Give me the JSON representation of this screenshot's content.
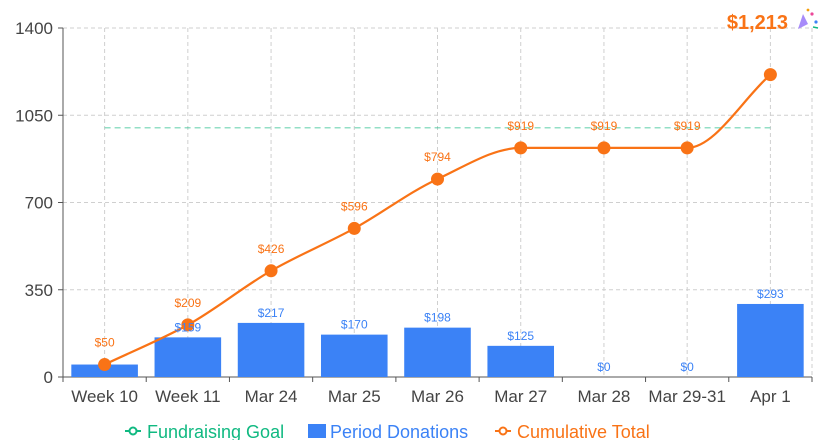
{
  "chart_data": {
    "type": "bar",
    "categories": [
      "Week 10",
      "Week 11",
      "Mar 24",
      "Mar 25",
      "Mar 26",
      "Mar 27",
      "Mar 28",
      "Mar 29-31",
      "Apr 1"
    ],
    "ylim": [
      0,
      1400
    ],
    "yticks": [
      0,
      350,
      700,
      1050,
      1400
    ],
    "grid": true,
    "legend_position": "bottom",
    "series": [
      {
        "name": "Fundraising Goal",
        "type": "line",
        "style": "dashed",
        "color": "#10b981",
        "values": [
          1000,
          1000,
          1000,
          1000,
          1000,
          1000,
          1000,
          1000,
          1000
        ]
      },
      {
        "name": "Period Donations",
        "type": "bar",
        "color": "#3b82f6",
        "values": [
          50,
          159,
          217,
          170,
          198,
          125,
          0,
          0,
          293
        ],
        "labels": [
          null,
          "$159",
          "$217",
          "$170",
          "$198",
          "$125",
          "$0",
          "$0",
          "$293"
        ]
      },
      {
        "name": "Cumulative Total",
        "type": "line",
        "color": "#f97316",
        "values": [
          50,
          209,
          426,
          596,
          794,
          919,
          919,
          919,
          1213
        ],
        "labels": [
          "$50",
          "$209",
          "$426",
          "$596",
          "$794",
          "$919",
          "$919",
          "$919",
          null
        ]
      }
    ],
    "total_annotation": {
      "text": "$1,213",
      "icon": "party-popper-icon",
      "color": "#f97316"
    }
  }
}
